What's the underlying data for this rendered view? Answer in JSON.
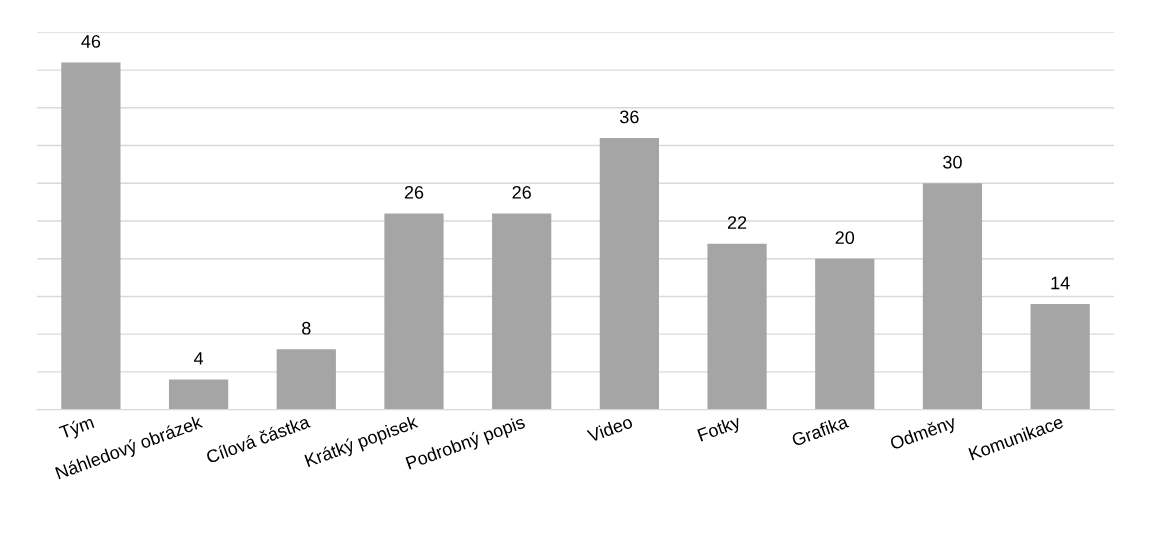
{
  "chart_data": {
    "type": "bar",
    "categories": [
      "Tým",
      "Náhledový obrázek",
      "Cílová částka",
      "Krátký popisek",
      "Podrobný popis",
      "Video",
      "Fotky",
      "Grafika",
      "Odměny",
      "Komunikace"
    ],
    "values": [
      46,
      4,
      8,
      26,
      26,
      36,
      22,
      20,
      30,
      14
    ],
    "color": "#a5a5a5",
    "ylim": [
      0,
      50
    ],
    "yticks": [
      {
        "value": 0,
        "label": null
      },
      {
        "value": 5,
        "label": null
      },
      {
        "value": 10,
        "label": null
      },
      {
        "value": 15,
        "label": null
      },
      {
        "value": 20,
        "label": null
      },
      {
        "value": 25,
        "label": null
      },
      {
        "value": 30,
        "label": null
      },
      {
        "value": 35,
        "label": null
      },
      {
        "value": 40,
        "label": null
      },
      {
        "value": 45,
        "label": null
      },
      {
        "value": 50,
        "label": null
      }
    ],
    "grid": "y",
    "tick_labels": "x",
    "data_labels": true
  }
}
